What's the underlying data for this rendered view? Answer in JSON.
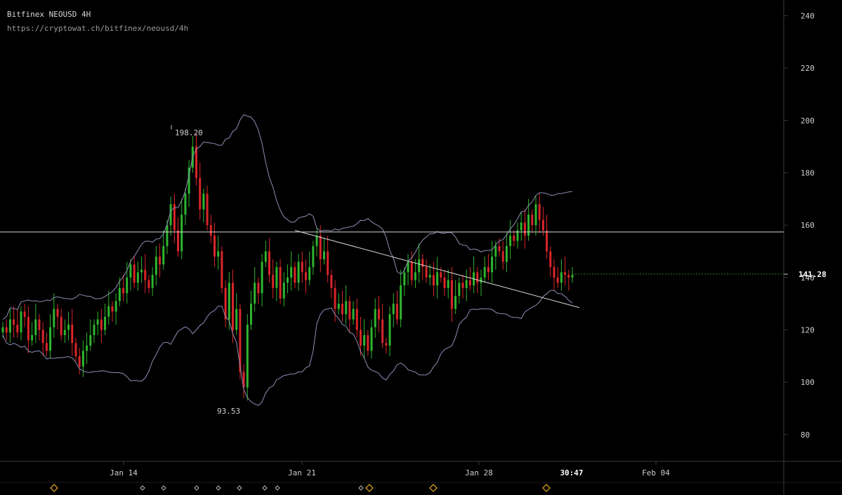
{
  "header": {
    "title": "Bitfinex NEOUSD 4H",
    "url": "https://cryptowat.ch/bitfinex/neousd/4h"
  },
  "colors": {
    "up": "#2fb52f",
    "down": "#d9262a",
    "band": "#8c8fb5",
    "line": "#d8d8d8",
    "axis": "#3a3a3a",
    "text": "#cfcfcf",
    "marker": "#d19a1e",
    "marker_small": "#b8b8b8",
    "price_line": "#2e7d2e"
  },
  "chart_data": {
    "type": "candlestick",
    "yaxis": {
      "range": [
        73,
        246
      ],
      "ticks": [
        80,
        100,
        120,
        140,
        160,
        180,
        200,
        220,
        240
      ]
    },
    "xaxis": {
      "labels": [
        "Jan 14",
        "Jan 21",
        "Jan 28",
        "Feb 04"
      ]
    },
    "current_price": "141.28",
    "countdown": "30:47",
    "annotations": [
      {
        "text": "198.20",
        "value": 198.2
      },
      {
        "text": "93.53",
        "value": 93.53
      }
    ],
    "horizontal_line": 157.4,
    "trendline": {
      "from": 158,
      "to": 128.5
    },
    "candles_close": [
      121,
      119,
      124,
      122,
      119,
      127,
      125,
      116,
      118,
      124,
      120,
      115,
      112,
      121,
      128,
      125,
      118,
      120,
      122,
      115,
      110,
      106,
      112,
      114,
      118,
      122,
      124,
      120,
      125,
      129,
      127,
      131,
      136,
      134,
      140,
      145,
      138,
      142,
      143,
      139,
      136,
      141,
      148,
      145,
      152,
      160,
      168,
      158,
      150,
      164,
      172,
      182,
      190,
      178,
      166,
      172,
      160,
      156,
      148,
      150,
      136,
      124,
      138,
      120,
      128,
      104,
      98,
      122,
      130,
      138,
      134,
      146,
      150,
      141,
      136,
      144,
      132,
      138,
      140,
      144,
      138,
      146,
      142,
      139,
      144,
      152,
      156,
      147,
      150,
      141,
      136,
      128,
      130,
      126,
      131,
      124,
      128,
      120,
      114,
      118,
      112,
      121,
      128,
      124,
      115,
      114,
      126,
      130,
      124,
      137,
      142,
      146,
      139,
      142,
      147,
      144,
      140,
      141,
      137,
      142,
      140,
      136,
      139,
      128,
      133,
      138,
      136,
      139,
      137,
      142,
      138,
      140,
      144,
      142,
      148,
      152,
      150,
      146,
      152,
      156,
      154,
      158,
      161,
      156,
      164,
      160,
      168,
      162,
      158,
      150,
      144,
      140,
      138,
      142,
      141,
      140,
      141
    ],
    "annotated_values": []
  },
  "bottom_markers": {
    "large": [
      "marker-1",
      "marker-2",
      "marker-3",
      "marker-4"
    ],
    "small": [
      "marker-a",
      "marker-b",
      "marker-c",
      "marker-d",
      "marker-e",
      "marker-f",
      "marker-g",
      "marker-h"
    ]
  }
}
